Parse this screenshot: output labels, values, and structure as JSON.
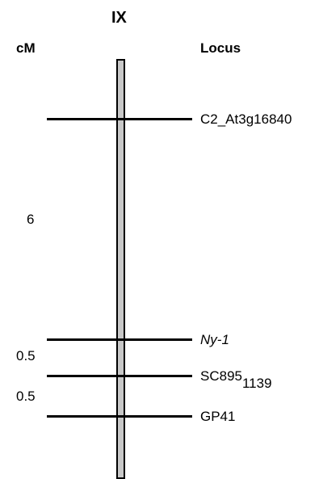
{
  "title": "IX",
  "cm_label": "cM",
  "locus_label": "Locus",
  "loci": [
    {
      "name": "C2_At3g16840",
      "sub": "",
      "italic": false
    },
    {
      "name": "Ny-1",
      "sub": "",
      "italic": true
    },
    {
      "name": "SC895",
      "sub": "1139",
      "italic": false
    },
    {
      "name": "GP41",
      "sub": "",
      "italic": false
    }
  ],
  "distances": [
    "6",
    "0.5",
    "0.5"
  ],
  "colors": {
    "chromosome_fill": "#c8c8c8",
    "line": "#000000"
  }
}
